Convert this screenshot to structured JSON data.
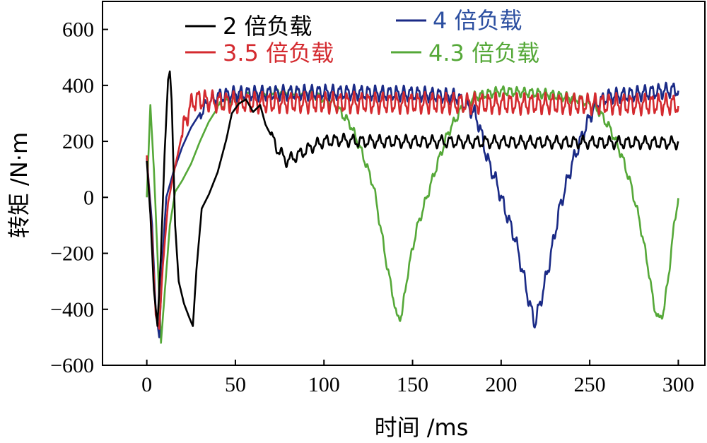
{
  "chart_data": {
    "type": "line",
    "xlabel": "时间 /ms",
    "ylabel": "转矩 /N·m",
    "xlim": [
      -25,
      315
    ],
    "ylim": [
      -600,
      700
    ],
    "x_ticks": [
      0,
      50,
      100,
      150,
      200,
      250,
      300
    ],
    "y_ticks": [
      600,
      400,
      200,
      0,
      -200,
      -400,
      -600
    ],
    "y_tick_labels": [
      "600",
      "400",
      "200",
      "0",
      "−200",
      "−400",
      "−600"
    ],
    "grid": false,
    "legend_position": "top",
    "series": [
      {
        "name": "2 倍负载",
        "color": "#000000",
        "keypoints": [
          [
            0,
            130
          ],
          [
            2,
            -60
          ],
          [
            4,
            -330
          ],
          [
            6,
            -460
          ],
          [
            8,
            -200
          ],
          [
            10,
            150
          ],
          [
            12,
            420
          ],
          [
            13,
            450
          ],
          [
            14,
            350
          ],
          [
            16,
            -100
          ],
          [
            18,
            -300
          ],
          [
            21,
            -380
          ],
          [
            24,
            -430
          ],
          [
            26,
            -460
          ],
          [
            28,
            -260
          ],
          [
            31,
            -40
          ],
          [
            35,
            10
          ],
          [
            40,
            90
          ],
          [
            45,
            210
          ],
          [
            48,
            300
          ],
          [
            52,
            335
          ],
          [
            56,
            350
          ],
          [
            60,
            305
          ],
          [
            64,
            330
          ],
          [
            67,
            260
          ],
          [
            71,
            210
          ],
          [
            74,
            170
          ],
          [
            79,
            130
          ],
          [
            85,
            150
          ],
          [
            93,
            180
          ],
          [
            100,
            200
          ],
          [
            110,
            205
          ],
          [
            120,
            200
          ],
          [
            300,
            195
          ]
        ],
        "osc_start": 70,
        "osc_amp": 18,
        "osc_period": 5
      },
      {
        "name": "4 倍负载",
        "color": "#1a2a86",
        "keypoints": [
          [
            0,
            140
          ],
          [
            3,
            -100
          ],
          [
            5,
            -400
          ],
          [
            7,
            -500
          ],
          [
            9,
            -200
          ],
          [
            11,
            0
          ],
          [
            15,
            90
          ],
          [
            20,
            180
          ],
          [
            25,
            250
          ],
          [
            30,
            300
          ],
          [
            35,
            340
          ],
          [
            40,
            360
          ],
          [
            50,
            370
          ],
          [
            100,
            375
          ],
          [
            150,
            370
          ],
          [
            175,
            360
          ],
          [
            180,
            330
          ],
          [
            185,
            300
          ],
          [
            188,
            250
          ],
          [
            192,
            140
          ],
          [
            197,
            60
          ],
          [
            202,
            -40
          ],
          [
            208,
            -150
          ],
          [
            213,
            -290
          ],
          [
            216,
            -380
          ],
          [
            219,
            -450
          ],
          [
            222,
            -380
          ],
          [
            227,
            -240
          ],
          [
            233,
            -40
          ],
          [
            240,
            120
          ],
          [
            247,
            240
          ],
          [
            253,
            330
          ],
          [
            260,
            360
          ],
          [
            300,
            385
          ]
        ],
        "osc_start": 30,
        "osc_amp": 22,
        "osc_period": 4
      },
      {
        "name": "3.5 倍负载",
        "color": "#d42a2f",
        "keypoints": [
          [
            0,
            150
          ],
          [
            3,
            -150
          ],
          [
            5,
            -420
          ],
          [
            7,
            -470
          ],
          [
            9,
            -250
          ],
          [
            12,
            -20
          ],
          [
            15,
            80
          ],
          [
            19,
            200
          ],
          [
            22,
            280
          ],
          [
            25,
            330
          ],
          [
            28,
            350
          ],
          [
            40,
            340
          ],
          [
            100,
            338
          ],
          [
            300,
            332
          ]
        ],
        "osc_start": 20,
        "osc_amp": 30,
        "osc_period": 4
      },
      {
        "name": "4.3 倍负载",
        "color": "#55a838",
        "keypoints": [
          [
            0,
            0
          ],
          [
            2,
            330
          ],
          [
            4,
            100
          ],
          [
            6,
            -200
          ],
          [
            8,
            -520
          ],
          [
            10,
            -350
          ],
          [
            13,
            -100
          ],
          [
            16,
            20
          ],
          [
            20,
            60
          ],
          [
            25,
            120
          ],
          [
            30,
            200
          ],
          [
            35,
            270
          ],
          [
            40,
            320
          ],
          [
            45,
            340
          ],
          [
            55,
            360
          ],
          [
            70,
            380
          ],
          [
            90,
            375
          ],
          [
            105,
            340
          ],
          [
            115,
            260
          ],
          [
            122,
            150
          ],
          [
            128,
            40
          ],
          [
            132,
            -110
          ],
          [
            136,
            -260
          ],
          [
            139,
            -350
          ],
          [
            141,
            -430
          ],
          [
            144,
            -420
          ],
          [
            147,
            -280
          ],
          [
            152,
            -120
          ],
          [
            158,
            0
          ],
          [
            164,
            120
          ],
          [
            170,
            230
          ],
          [
            177,
            310
          ],
          [
            185,
            360
          ],
          [
            200,
            380
          ],
          [
            225,
            370
          ],
          [
            245,
            350
          ],
          [
            255,
            310
          ],
          [
            262,
            240
          ],
          [
            268,
            150
          ],
          [
            273,
            50
          ],
          [
            278,
            -80
          ],
          [
            283,
            -250
          ],
          [
            286,
            -380
          ],
          [
            289,
            -440
          ],
          [
            292,
            -400
          ],
          [
            295,
            -250
          ],
          [
            298,
            -80
          ],
          [
            300,
            0
          ]
        ],
        "osc_start": 40,
        "osc_amp": 14,
        "osc_period": 4
      }
    ]
  }
}
